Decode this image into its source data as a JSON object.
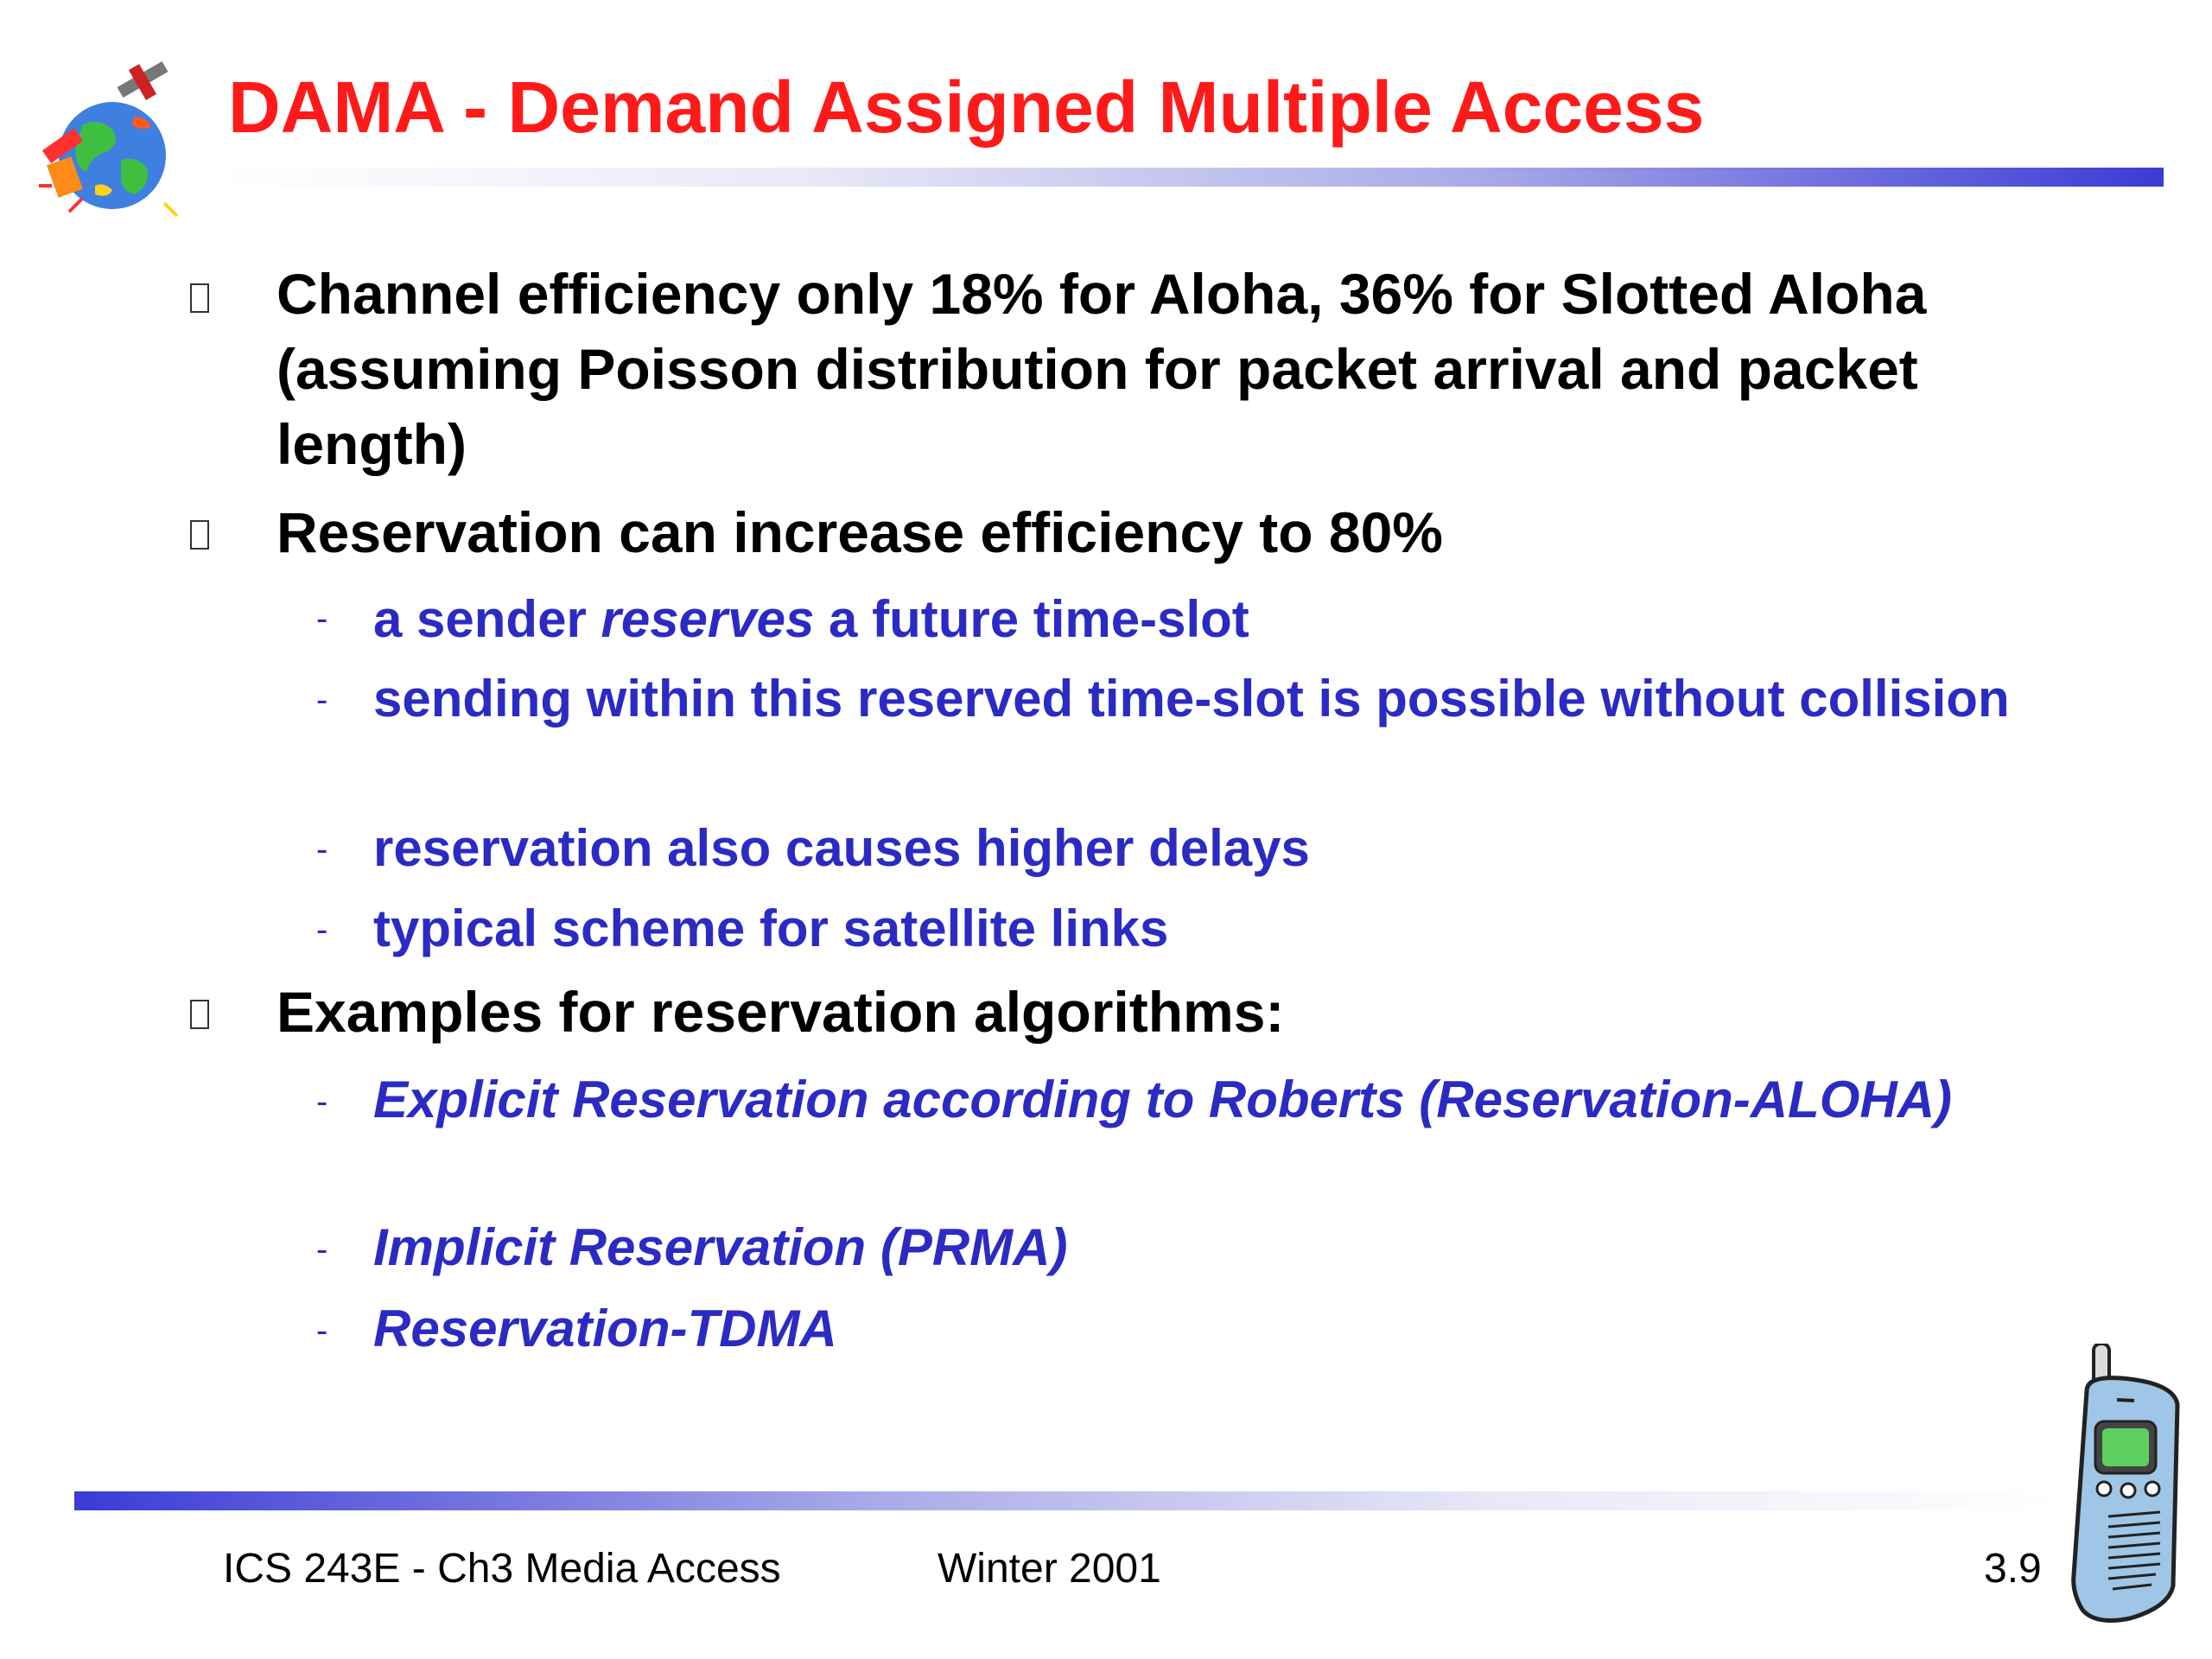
{
  "title": "DAMA - Demand Assigned Multiple Access",
  "bullets": [
    {
      "text": "Channel efficiency only 18% for Aloha, 36% for Slotted Aloha (assuming Poisson distribution for packet arrival and packet length)"
    },
    {
      "text": "Reservation can increase efficiency to 80%",
      "sub": [
        {
          "before": "a sender ",
          "emph": "reserves",
          "after": " a future time-slot"
        },
        {
          "text": "sending within this reserved time-slot is possible without collision"
        },
        {
          "text": "reservation also causes higher delays"
        },
        {
          "text": "typical scheme for satellite links"
        }
      ]
    },
    {
      "text": "Examples for reservation algorithms:",
      "sub": [
        {
          "text": "Explicit Reservation according to Roberts (Reservation-ALOHA)"
        },
        {
          "text": "Implicit Reservation (PRMA)"
        },
        {
          "text": "Reservation-TDMA"
        }
      ]
    }
  ],
  "footer": {
    "course": "ICS 243E -  Ch3 Media Access",
    "term": "Winter 2001",
    "page": "3.9"
  },
  "colors": {
    "title": "#ff1a1a",
    "sub_text": "#2b2bc4",
    "rule": "#3b3bd6"
  },
  "icons": {
    "logo": "satellite-globe-icon",
    "phone": "mobile-phone-icon"
  }
}
